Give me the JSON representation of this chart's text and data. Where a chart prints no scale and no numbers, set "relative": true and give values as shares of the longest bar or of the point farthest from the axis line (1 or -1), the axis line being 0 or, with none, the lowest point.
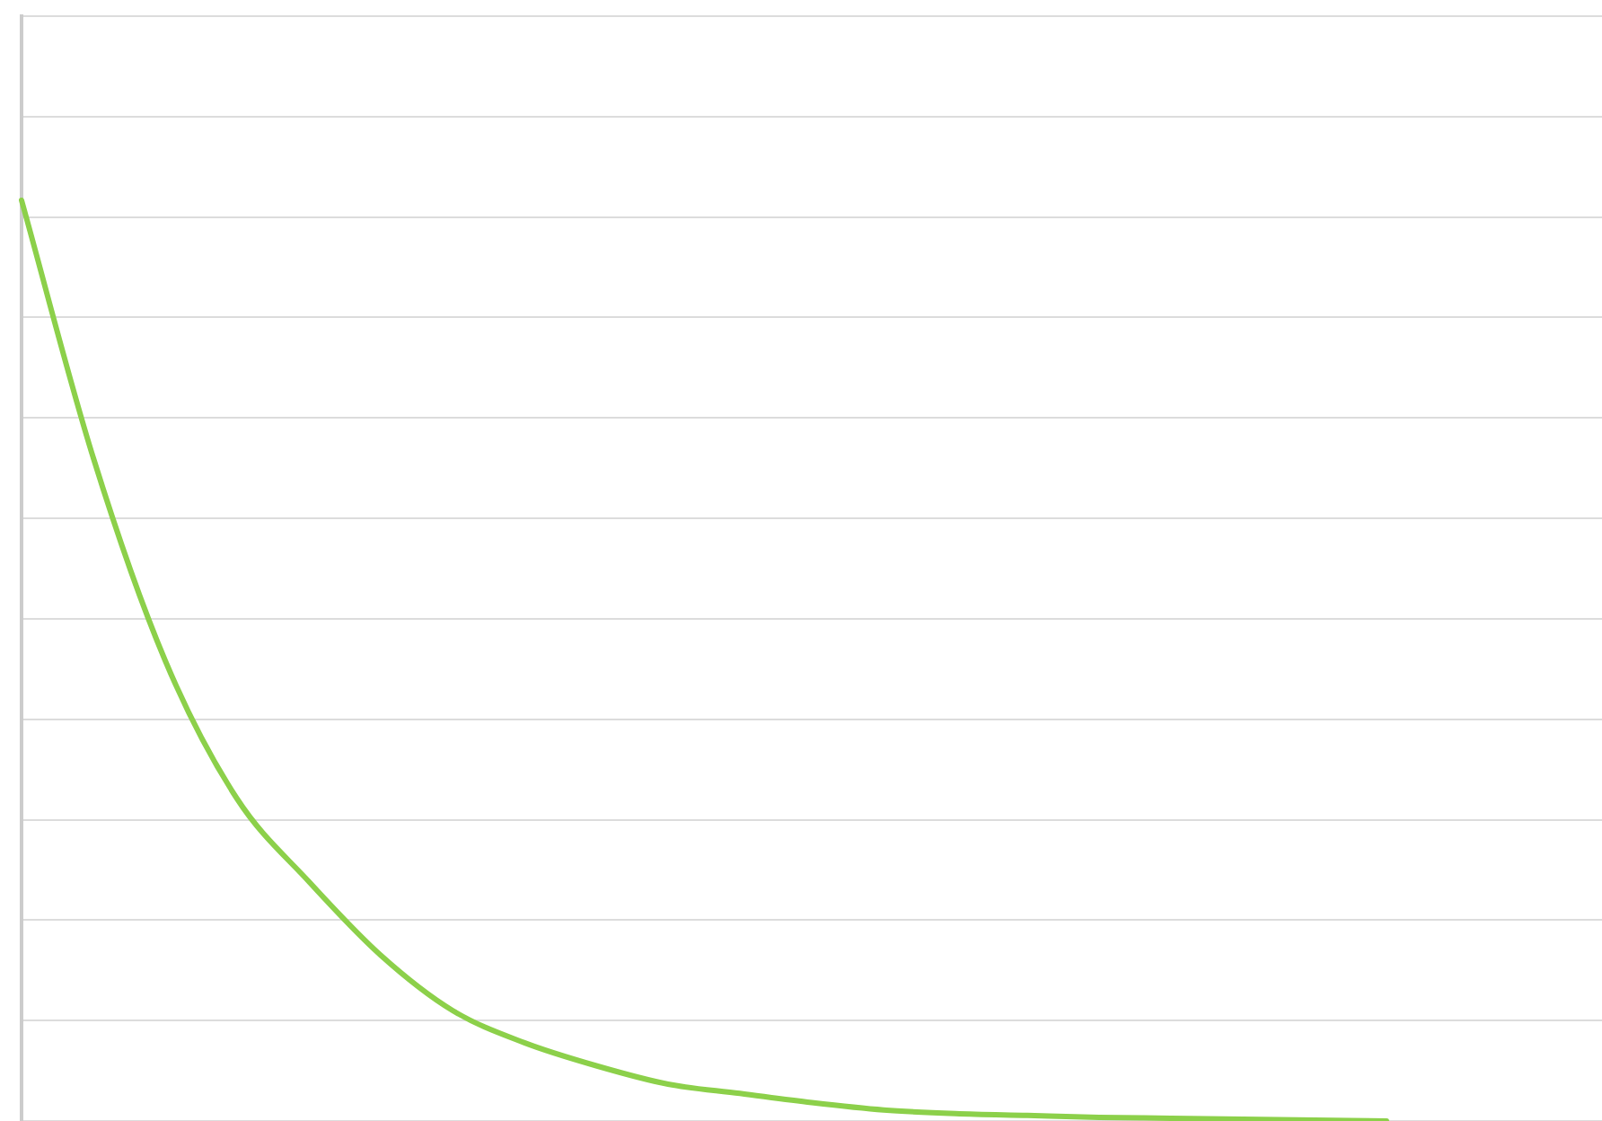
{
  "chart_data": {
    "type": "line",
    "relative": true,
    "grid": "y",
    "marker": "none",
    "line_style": "solid",
    "categories": [
      null,
      null,
      null,
      null,
      null,
      null,
      null,
      null,
      null,
      null,
      null,
      null,
      null,
      null,
      null,
      null,
      null,
      null,
      null,
      null,
      null,
      null,
      null
    ],
    "series": [
      {
        "color": "#8cd04a",
        "values": [
          1.0,
          0.72,
          0.5,
          0.35,
          0.26,
          0.18,
          0.12,
          0.085,
          0.06,
          0.04,
          0.03,
          0.02,
          0.012,
          0.008,
          0.006,
          0.004,
          0.003,
          0.002,
          0.001,
          0,
          null,
          null,
          null
        ]
      }
    ]
  }
}
